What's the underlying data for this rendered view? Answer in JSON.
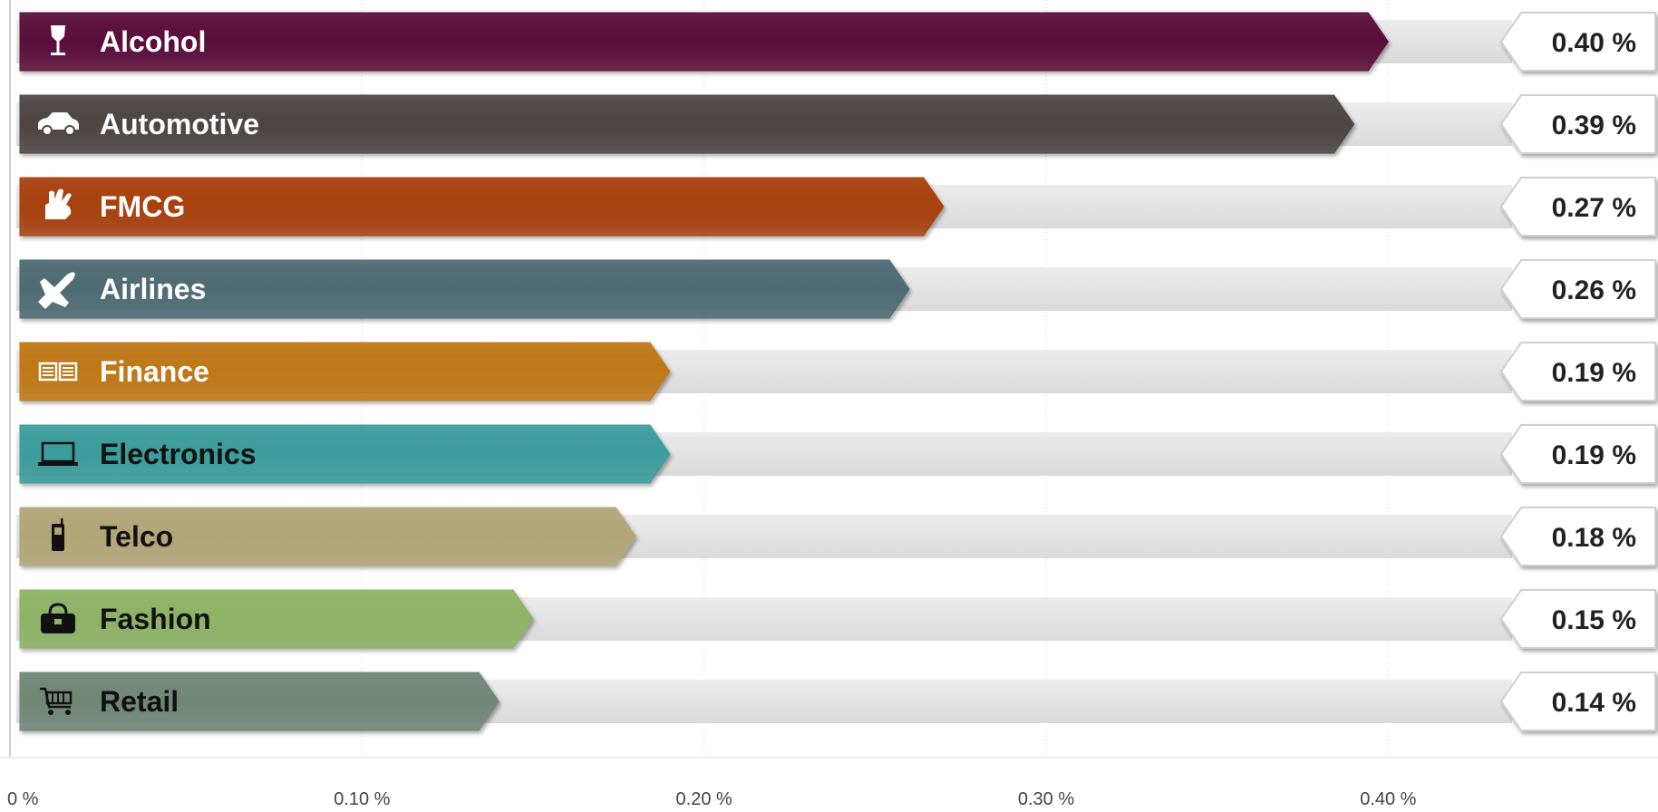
{
  "chart_data": {
    "type": "bar",
    "orientation": "horizontal",
    "categories": [
      "Alcohol",
      "Automotive",
      "FMCG",
      "Airlines",
      "Finance",
      "Electronics",
      "Telco",
      "Fashion",
      "Retail"
    ],
    "values": [
      0.4,
      0.39,
      0.27,
      0.26,
      0.19,
      0.19,
      0.18,
      0.15,
      0.14
    ],
    "value_labels": [
      "0.40 %",
      "0.39 %",
      "0.27 %",
      "0.26 %",
      "0.19 %",
      "0.19 %",
      "0.18 %",
      "0.15 %",
      "0.14 %"
    ],
    "icons": [
      "wine-glass-icon",
      "car-icon",
      "hand-icon",
      "airplane-icon",
      "book-icon",
      "laptop-icon",
      "phone-icon",
      "handbag-icon",
      "cart-icon"
    ],
    "colors": [
      "#5a0f3a",
      "#4d4544",
      "#a8400c",
      "#4e6b74",
      "#c07818",
      "#3c9c9c",
      "#b2a678",
      "#8db366",
      "#708777"
    ],
    "label_colors": [
      "#ffffff",
      "#ffffff",
      "#ffffff",
      "#ffffff",
      "#ffffff",
      "#111111",
      "#111111",
      "#111111",
      "#111111"
    ],
    "xlim": [
      0,
      0.45
    ],
    "x_ticks": [
      0,
      0.1,
      0.2,
      0.3,
      0.4
    ],
    "x_tick_labels": [
      "0 %",
      "0.10 %",
      "0.20 %",
      "0.30 %",
      "0.40 %"
    ],
    "title": "",
    "xlabel": "",
    "ylabel": "",
    "grid": true,
    "legend": "none"
  }
}
